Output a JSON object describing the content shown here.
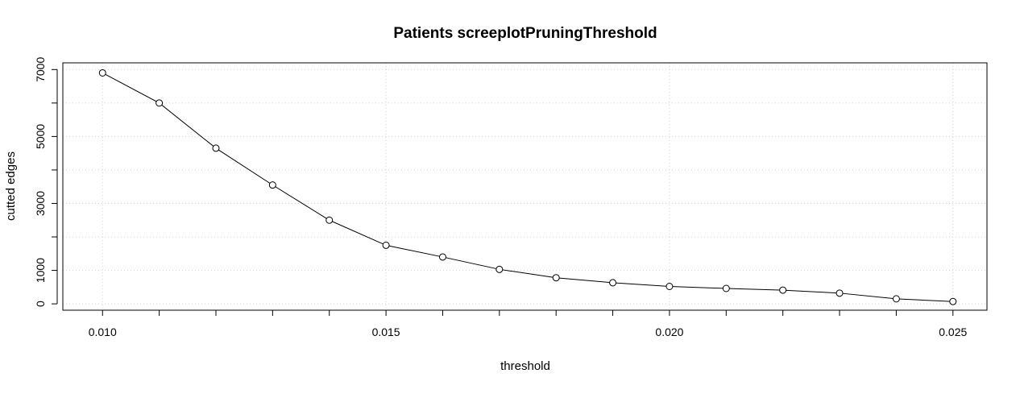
{
  "chart_data": {
    "type": "line",
    "title": "Patients screeplotPruningThreshold",
    "xlabel": "threshold",
    "ylabel": "cutted edges",
    "x": [
      0.01,
      0.011,
      0.012,
      0.013,
      0.014,
      0.015,
      0.016,
      0.017,
      0.018,
      0.019,
      0.02,
      0.021,
      0.022,
      0.023,
      0.024,
      0.025
    ],
    "series": [
      {
        "values": [
          6900,
          6000,
          4650,
          3550,
          2500,
          1750,
          1400,
          1030,
          780,
          630,
          520,
          460,
          410,
          320,
          150,
          70
        ]
      }
    ],
    "xlim": [
      0.0093,
      0.0256
    ],
    "ylim": [
      -190,
      7200
    ],
    "x_ticks": [
      0.01,
      0.011,
      0.012,
      0.013,
      0.014,
      0.015,
      0.016,
      0.017,
      0.018,
      0.019,
      0.02,
      0.021,
      0.022,
      0.023,
      0.024,
      0.025
    ],
    "x_tick_labels": [
      {
        "value": 0.01,
        "label": "0.010"
      },
      {
        "value": 0.015,
        "label": "0.015"
      },
      {
        "value": 0.02,
        "label": "0.020"
      },
      {
        "value": 0.025,
        "label": "0.025"
      }
    ],
    "y_ticks": [
      0,
      1000,
      2000,
      3000,
      4000,
      5000,
      6000,
      7000
    ],
    "y_tick_labels": [
      {
        "value": 0,
        "label": "0"
      },
      {
        "value": 1000,
        "label": "1000"
      },
      {
        "value": 3000,
        "label": "3000"
      },
      {
        "value": 5000,
        "label": "5000"
      },
      {
        "value": 7000,
        "label": "7000"
      }
    ],
    "x_grid": [
      0.01,
      0.015,
      0.02,
      0.025
    ],
    "y_grid": [
      0,
      1000,
      2000,
      3000,
      4000,
      5000,
      6000,
      7000
    ],
    "grid": true,
    "grid_style": "dotted",
    "marker": "open-circle",
    "colors": {
      "line": "#000000",
      "grid": "#d3d3d3",
      "marker_fill": "#ffffff"
    }
  }
}
